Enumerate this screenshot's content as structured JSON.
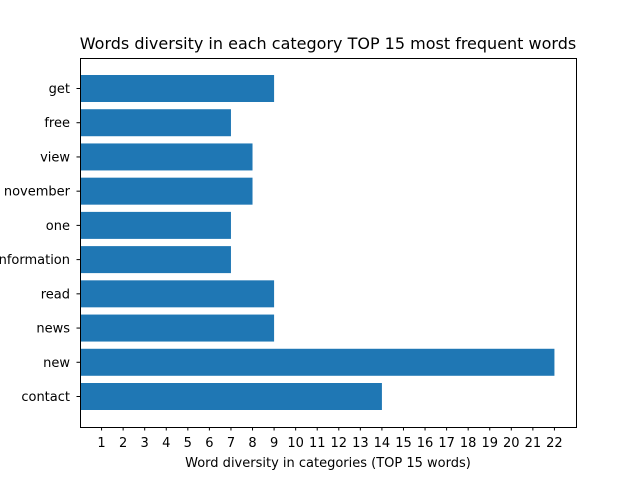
{
  "chart_data": {
    "type": "bar",
    "orientation": "horizontal",
    "title": "Words diversity in each category TOP 15 most frequent words",
    "xlabel": "Word diversity in categories (TOP 15 words)",
    "ylabel": "",
    "categories": [
      "get",
      "free",
      "view",
      "november",
      "one",
      "information",
      "read",
      "news",
      "new",
      "contact"
    ],
    "values": [
      9,
      7,
      8,
      8,
      7,
      7,
      9,
      9,
      22,
      14
    ],
    "xlim": [
      0,
      23
    ],
    "xticks": [
      1,
      2,
      3,
      4,
      5,
      6,
      7,
      8,
      9,
      10,
      11,
      12,
      13,
      14,
      15,
      16,
      17,
      18,
      19,
      20,
      21,
      22
    ],
    "grid": false,
    "legend": "none",
    "bar_color": "#1f77b4"
  }
}
